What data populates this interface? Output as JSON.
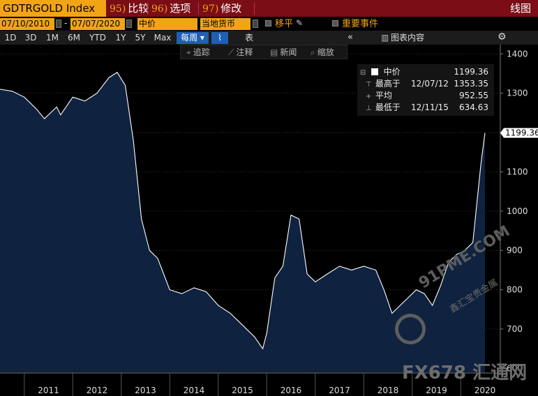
{
  "header": {
    "ticker": "GDTRGOLD Index",
    "menus": [
      {
        "num": "95)",
        "label": "比较"
      },
      {
        "num": "96)",
        "label": "选项"
      },
      {
        "num": "97)",
        "label": "修改"
      }
    ],
    "chart_type": "线图"
  },
  "settings": {
    "start_date": "07/10/2010",
    "dash": "-",
    "end_date": "07/07/2020",
    "price_field": "中价",
    "currency": "当地货币",
    "move_label": "移平",
    "events_label": "重要事件"
  },
  "ranges": [
    "1D",
    "3D",
    "1M",
    "6M",
    "YTD",
    "1Y",
    "5Y",
    "Max"
  ],
  "frequency": "每周",
  "table_label": "表",
  "panel_label": "图表内容",
  "tools": [
    "追踪",
    "注释",
    "新闻",
    "缩放"
  ],
  "legend": {
    "series_name": "中价",
    "series_value": "1199.36",
    "high_label": "最高于",
    "high_date": "12/07/12",
    "high_value": "1353.35",
    "avg_label": "平均",
    "avg_value": "952.55",
    "low_label": "最低于",
    "low_date": "12/11/15",
    "low_value": "634.63"
  },
  "last_value_label": "1199.36",
  "watermarks": {
    "site1": "91PME.COM",
    "site1_sub": "鑫汇宝贵金属",
    "site2": "FX678 汇通网"
  },
  "colors": {
    "fill": "#0f2240",
    "line": "#ffffff",
    "accent": "#f2a514",
    "title_bar": "#7a0d16",
    "active": "#1f5fb5"
  },
  "chart_data": {
    "type": "area",
    "title": "GDTRGOLD Index",
    "xlabel": "",
    "ylabel": "",
    "ylim": [
      590,
      1420
    ],
    "yticks": [
      600,
      700,
      800,
      900,
      1000,
      1100,
      1200,
      1300,
      1400
    ],
    "x_labels": [
      "2011",
      "2012",
      "2013",
      "2014",
      "2015",
      "2016",
      "2017",
      "2018",
      "2019",
      "2020"
    ],
    "x": [
      "2010-07",
      "2010-10",
      "2011-01",
      "2011-04",
      "2011-06",
      "2011-09",
      "2011-10",
      "2012-01",
      "2012-04",
      "2012-07",
      "2012-10",
      "2012-12",
      "2013-02",
      "2013-04",
      "2013-06",
      "2013-08",
      "2013-10",
      "2014-01",
      "2014-04",
      "2014-07",
      "2014-10",
      "2015-01",
      "2015-04",
      "2015-07",
      "2015-10",
      "2015-12",
      "2016-01",
      "2016-03",
      "2016-05",
      "2016-07",
      "2016-09",
      "2016-11",
      "2017-01",
      "2017-04",
      "2017-07",
      "2017-10",
      "2018-01",
      "2018-04",
      "2018-06",
      "2018-08",
      "2018-10",
      "2018-12",
      "2019-02",
      "2019-04",
      "2019-06",
      "2019-08",
      "2019-10",
      "2019-12",
      "2020-02",
      "2020-04",
      "2020-06",
      "2020-07"
    ],
    "series": [
      {
        "name": "中价",
        "values": [
          1310,
          1305,
          1290,
          1260,
          1235,
          1265,
          1245,
          1290,
          1280,
          1300,
          1340,
          1353,
          1320,
          1180,
          980,
          900,
          880,
          800,
          790,
          805,
          795,
          760,
          740,
          710,
          680,
          650,
          690,
          830,
          860,
          990,
          980,
          840,
          820,
          840,
          860,
          850,
          860,
          850,
          800,
          740,
          760,
          780,
          800,
          790,
          760,
          810,
          870,
          890,
          900,
          920,
          1120,
          1199
        ]
      }
    ]
  }
}
